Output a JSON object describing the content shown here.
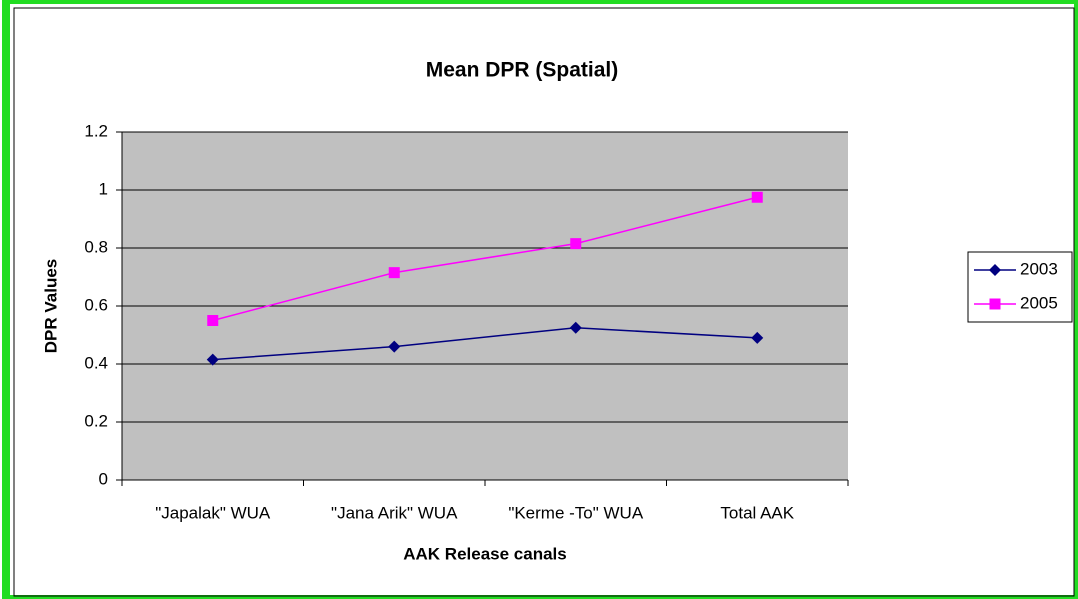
{
  "chart_data": {
    "type": "line",
    "title": "Mean DPR (Spatial)",
    "x_label": "AAK Release canals",
    "y_label": "DPR Values",
    "categories": [
      "\"Japalak\" WUA",
      "\"Jana Arik\" WUA",
      "\"Kerme -To\" WUA",
      "Total AAK"
    ],
    "series": [
      {
        "name": "2003",
        "color": "#000080",
        "marker": "diamond",
        "values": [
          0.415,
          0.46,
          0.525,
          0.49
        ]
      },
      {
        "name": "2005",
        "color": "#ff00ff",
        "marker": "square",
        "values": [
          0.55,
          0.715,
          0.815,
          0.975
        ]
      }
    ],
    "ylim": [
      0,
      1.2
    ],
    "yticks": [
      0,
      0.2,
      0.4,
      0.6,
      0.8,
      1,
      1.2
    ],
    "grid": true,
    "legend": "right"
  }
}
